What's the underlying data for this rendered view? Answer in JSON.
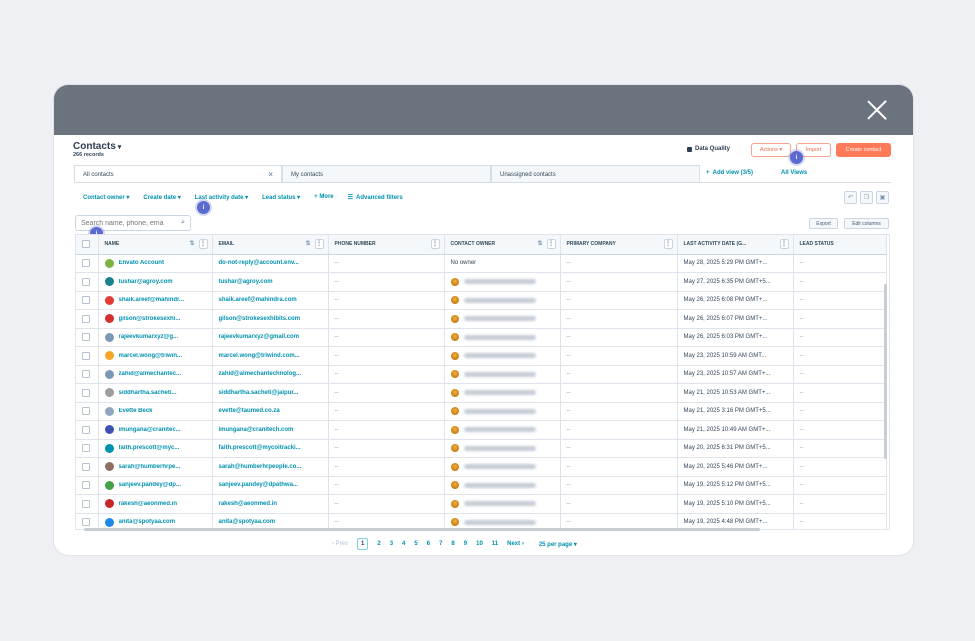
{
  "header": {
    "title": "Contacts",
    "records": "266 records",
    "data_quality": "Data Quality",
    "actions": "Actions",
    "import": "Import",
    "create": "Create contact"
  },
  "tabs": [
    {
      "label": "All contacts"
    },
    {
      "label": "My contacts"
    },
    {
      "label": "Unassigned contacts"
    }
  ],
  "add_view": "Add view (3/5)",
  "all_views": "All Views",
  "filters": {
    "owner": "Contact owner",
    "create_date": "Create date",
    "last_activity": "Last activity date",
    "lead_status": "Lead status",
    "more": "More",
    "advanced": "Advanced filters"
  },
  "search": {
    "placeholder": "Search name, phone, ema"
  },
  "toolbar": {
    "export": "Export",
    "edit_columns": "Edit columns"
  },
  "columns": [
    "NAME",
    "EMAIL",
    "PHONE NUMBER",
    "CONTACT OWNER",
    "PRIMARY COMPANY",
    "LAST ACTIVITY DATE (G...",
    "LEAD STATUS"
  ],
  "rows": [
    {
      "name": "Envato Account",
      "email": "do-not-reply@account.env...",
      "phone": "--",
      "owner": "No owner",
      "company": "--",
      "date": "May 28, 2025 5:29 PM GMT+...",
      "status": "--",
      "avatar": "#7cb342"
    },
    {
      "name": "tushar@agroy.com",
      "email": "tushar@agroy.com",
      "phone": "--",
      "owner": "",
      "company": "--",
      "date": "May 27, 2025 6:35 PM GMT+5...",
      "status": "--",
      "avatar": "#1a7f8e"
    },
    {
      "name": "shaik.areef@mahindr...",
      "email": "shaik.areef@mahindra.com",
      "phone": "--",
      "owner": "",
      "company": "--",
      "date": "May 26, 2025 6:08 PM GMT+...",
      "status": "--",
      "avatar": "#e53935"
    },
    {
      "name": "gilson@strokesexhi...",
      "email": "gilson@strokesexhibits.com",
      "phone": "--",
      "owner": "",
      "company": "--",
      "date": "May 26, 2025 6:07 PM GMT+...",
      "status": "--",
      "avatar": "#d32f2f"
    },
    {
      "name": "rajeevkumarxyz@g...",
      "email": "rajeevkumarxyz@gmail.com",
      "phone": "--",
      "owner": "",
      "company": "--",
      "date": "May 26, 2025 6:03 PM GMT+...",
      "status": "--",
      "avatar": "#7c98b6"
    },
    {
      "name": "marcel.wong@triwin...",
      "email": "marcel.wong@triwind.com...",
      "phone": "--",
      "owner": "",
      "company": "--",
      "date": "May 23, 2025 10:59 AM GMT...",
      "status": "--",
      "avatar": "#f5a623"
    },
    {
      "name": "zahid@almechantec...",
      "email": "zahid@almechantechnolog...",
      "phone": "--",
      "owner": "",
      "company": "--",
      "date": "May 23, 2025 10:57 AM GMT+...",
      "status": "--",
      "avatar": "#7c98b6"
    },
    {
      "name": "siddhartha.sacheti...",
      "email": "siddhartha.sacheti@jaipur...",
      "phone": "--",
      "owner": "",
      "company": "--",
      "date": "May 21, 2025 10:53 AM GMT+...",
      "status": "--",
      "avatar": "#9e9e9e"
    },
    {
      "name": "Evette Beck",
      "email": "evette@taumed.co.za",
      "phone": "--",
      "owner": "",
      "company": "--",
      "date": "May 21, 2025 3:16 PM GMT+5...",
      "status": "--",
      "avatar": "#8fa5c2"
    },
    {
      "name": "imungana@cranitec...",
      "email": "imungana@cranitech.com",
      "phone": "--",
      "owner": "",
      "company": "--",
      "date": "May 21, 2025 10:49 AM GMT+...",
      "status": "--",
      "avatar": "#3f51b5"
    },
    {
      "name": "faith.prescott@myc...",
      "email": "faith.prescott@mycoitracki...",
      "phone": "--",
      "owner": "",
      "company": "--",
      "date": "May 20, 2025 6:31 PM GMT+5...",
      "status": "--",
      "avatar": "#0091ae"
    },
    {
      "name": "sarah@humberhrpe...",
      "email": "sarah@humberhrpeople.co...",
      "phone": "--",
      "owner": "",
      "company": "--",
      "date": "May 20, 2025 5:46 PM GMT+...",
      "status": "--",
      "avatar": "#8d6e63"
    },
    {
      "name": "sanjeev.pandey@dp...",
      "email": "sanjeev.pandey@dpathwa...",
      "phone": "--",
      "owner": "",
      "company": "--",
      "date": "May 19, 2025 5:12 PM GMT+5...",
      "status": "--",
      "avatar": "#43a047"
    },
    {
      "name": "rakesh@aeonmed.in",
      "email": "rakesh@aeonmed.in",
      "phone": "--",
      "owner": "",
      "company": "--",
      "date": "May 19, 2025 5:10 PM GMT+5...",
      "status": "--",
      "avatar": "#c62828"
    },
    {
      "name": "anita@spotyaa.com",
      "email": "anita@spotyaa.com",
      "phone": "--",
      "owner": "",
      "company": "--",
      "date": "May 19, 2025 4:48 PM GMT+...",
      "status": "--",
      "avatar": "#1e88e5"
    }
  ],
  "pager": {
    "prev": "Prev",
    "pages": [
      "1",
      "2",
      "3",
      "4",
      "5",
      "6",
      "7",
      "8",
      "9",
      "10",
      "11"
    ],
    "next": "Next",
    "per_page": "25 per page"
  }
}
